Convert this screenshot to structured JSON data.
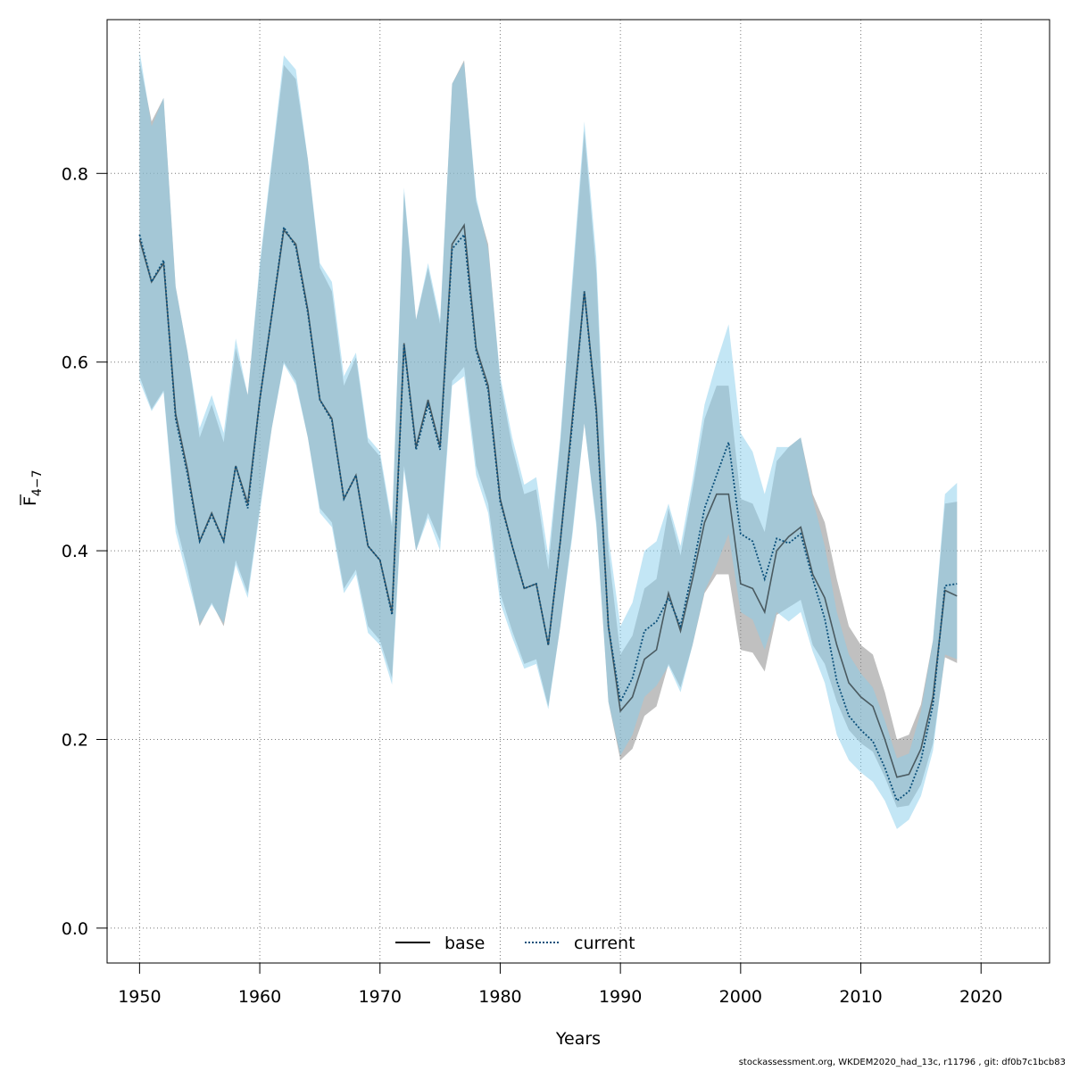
{
  "chart_data": {
    "type": "line",
    "title": "",
    "xlabel": "Years",
    "ylabel_main": "F",
    "ylabel_sub": "4−7",
    "xlim": [
      1947.3,
      2025.7
    ],
    "ylim": [
      -0.037,
      0.963
    ],
    "x_ticks": [
      1950,
      1960,
      1970,
      1980,
      1990,
      2000,
      2010,
      2020
    ],
    "x_tick_labels": [
      "1950",
      "1960",
      "1970",
      "1980",
      "1990",
      "2000",
      "2010",
      "2020"
    ],
    "y_ticks": [
      0.0,
      0.2,
      0.4,
      0.6,
      0.8
    ],
    "y_tick_labels": [
      "0.0",
      "0.2",
      "0.4",
      "0.6",
      "0.8"
    ],
    "grid": true,
    "legend_position": "bottom-center",
    "colors": {
      "base_line": "#000000",
      "base_band": "#8c8c8c",
      "current_line": "#0a4f7a",
      "current_band": "#87ceeb",
      "grid": "#777777"
    },
    "x": [
      1950,
      1951,
      1952,
      1953,
      1954,
      1955,
      1956,
      1957,
      1958,
      1959,
      1960,
      1961,
      1962,
      1963,
      1964,
      1965,
      1966,
      1967,
      1968,
      1969,
      1970,
      1971,
      1972,
      1973,
      1974,
      1975,
      1976,
      1977,
      1978,
      1979,
      1980,
      1981,
      1982,
      1983,
      1984,
      1985,
      1986,
      1987,
      1988,
      1989,
      1990,
      1991,
      1992,
      1993,
      1994,
      1995,
      1996,
      1997,
      1998,
      1999,
      2000,
      2001,
      2002,
      2003,
      2004,
      2005,
      2006,
      2007,
      2008,
      2009,
      2010,
      2011,
      2012,
      2013,
      2014,
      2015,
      2016,
      2017,
      2018
    ],
    "series": [
      {
        "name": "base",
        "values": [
          0.73,
          0.685,
          0.705,
          0.545,
          0.485,
          0.41,
          0.44,
          0.41,
          0.49,
          0.45,
          0.56,
          0.65,
          0.74,
          0.725,
          0.655,
          0.56,
          0.54,
          0.455,
          0.48,
          0.405,
          0.39,
          0.335,
          0.62,
          0.51,
          0.56,
          0.51,
          0.725,
          0.745,
          0.615,
          0.575,
          0.455,
          0.405,
          0.36,
          0.365,
          0.3,
          0.41,
          0.54,
          0.675,
          0.55,
          0.32,
          0.23,
          0.245,
          0.285,
          0.295,
          0.355,
          0.315,
          0.37,
          0.43,
          0.46,
          0.46,
          0.365,
          0.36,
          0.335,
          0.4,
          0.415,
          0.425,
          0.375,
          0.35,
          0.3,
          0.26,
          0.245,
          0.235,
          0.2,
          0.16,
          0.163,
          0.19,
          0.245,
          0.358,
          0.352
        ],
        "lower": [
          0.585,
          0.55,
          0.57,
          0.43,
          0.38,
          0.32,
          0.345,
          0.32,
          0.39,
          0.355,
          0.445,
          0.53,
          0.6,
          0.58,
          0.52,
          0.445,
          0.43,
          0.36,
          0.38,
          0.32,
          0.305,
          0.265,
          0.49,
          0.4,
          0.44,
          0.41,
          0.58,
          0.595,
          0.49,
          0.45,
          0.355,
          0.315,
          0.28,
          0.285,
          0.235,
          0.32,
          0.42,
          0.535,
          0.43,
          0.24,
          0.178,
          0.19,
          0.225,
          0.235,
          0.28,
          0.255,
          0.3,
          0.355,
          0.375,
          0.375,
          0.295,
          0.292,
          0.272,
          0.332,
          0.34,
          0.348,
          0.3,
          0.28,
          0.24,
          0.21,
          0.196,
          0.187,
          0.16,
          0.128,
          0.13,
          0.152,
          0.196,
          0.287,
          0.281
        ],
        "upper": [
          0.92,
          0.855,
          0.88,
          0.68,
          0.61,
          0.52,
          0.555,
          0.515,
          0.615,
          0.565,
          0.7,
          0.81,
          0.915,
          0.9,
          0.815,
          0.7,
          0.675,
          0.575,
          0.605,
          0.515,
          0.5,
          0.425,
          0.78,
          0.645,
          0.7,
          0.64,
          0.895,
          0.92,
          0.77,
          0.725,
          0.58,
          0.51,
          0.46,
          0.465,
          0.38,
          0.515,
          0.68,
          0.845,
          0.695,
          0.4,
          0.29,
          0.31,
          0.36,
          0.37,
          0.445,
          0.395,
          0.465,
          0.54,
          0.575,
          0.575,
          0.455,
          0.45,
          0.42,
          0.495,
          0.51,
          0.52,
          0.46,
          0.43,
          0.37,
          0.32,
          0.3,
          0.29,
          0.25,
          0.2,
          0.205,
          0.237,
          0.305,
          0.45,
          0.452
        ]
      },
      {
        "name": "current",
        "values": [
          0.735,
          0.685,
          0.708,
          0.54,
          0.48,
          0.41,
          0.438,
          0.41,
          0.49,
          0.445,
          0.56,
          0.65,
          0.743,
          0.722,
          0.652,
          0.56,
          0.538,
          0.455,
          0.48,
          0.405,
          0.39,
          0.332,
          0.618,
          0.507,
          0.555,
          0.507,
          0.72,
          0.735,
          0.612,
          0.57,
          0.452,
          0.405,
          0.36,
          0.365,
          0.3,
          0.41,
          0.535,
          0.675,
          0.545,
          0.32,
          0.24,
          0.265,
          0.315,
          0.325,
          0.35,
          0.32,
          0.38,
          0.445,
          0.48,
          0.515,
          0.418,
          0.41,
          0.37,
          0.413,
          0.408,
          0.418,
          0.37,
          0.328,
          0.262,
          0.225,
          0.21,
          0.198,
          0.17,
          0.135,
          0.145,
          0.178,
          0.237,
          0.363,
          0.365
        ],
        "lower": [
          0.58,
          0.548,
          0.568,
          0.42,
          0.37,
          0.322,
          0.343,
          0.323,
          0.385,
          0.35,
          0.44,
          0.53,
          0.598,
          0.576,
          0.52,
          0.44,
          0.425,
          0.355,
          0.375,
          0.313,
          0.3,
          0.258,
          0.485,
          0.4,
          0.435,
          0.4,
          0.575,
          0.585,
          0.48,
          0.44,
          0.345,
          0.308,
          0.275,
          0.28,
          0.232,
          0.32,
          0.415,
          0.535,
          0.425,
          0.24,
          0.183,
          0.205,
          0.245,
          0.257,
          0.278,
          0.25,
          0.3,
          0.357,
          0.385,
          0.418,
          0.335,
          0.327,
          0.295,
          0.335,
          0.325,
          0.335,
          0.293,
          0.26,
          0.205,
          0.178,
          0.165,
          0.155,
          0.135,
          0.105,
          0.115,
          0.14,
          0.188,
          0.29,
          0.285
        ],
        "upper": [
          0.93,
          0.85,
          0.88,
          0.68,
          0.61,
          0.53,
          0.565,
          0.525,
          0.625,
          0.565,
          0.705,
          0.815,
          0.925,
          0.91,
          0.815,
          0.705,
          0.685,
          0.585,
          0.61,
          0.52,
          0.505,
          0.43,
          0.785,
          0.645,
          0.705,
          0.645,
          0.895,
          0.918,
          0.775,
          0.72,
          0.585,
          0.52,
          0.47,
          0.478,
          0.395,
          0.52,
          0.69,
          0.855,
          0.71,
          0.415,
          0.32,
          0.345,
          0.4,
          0.41,
          0.45,
          0.405,
          0.475,
          0.555,
          0.6,
          0.64,
          0.525,
          0.505,
          0.46,
          0.51,
          0.51,
          0.52,
          0.455,
          0.405,
          0.335,
          0.29,
          0.27,
          0.255,
          0.22,
          0.18,
          0.185,
          0.23,
          0.305,
          0.46,
          0.472
        ]
      }
    ]
  },
  "footer": {
    "text": "stockassessment.org, WKDEM2020_had_13c, r11796 , git: df0b7c1bcb83"
  }
}
